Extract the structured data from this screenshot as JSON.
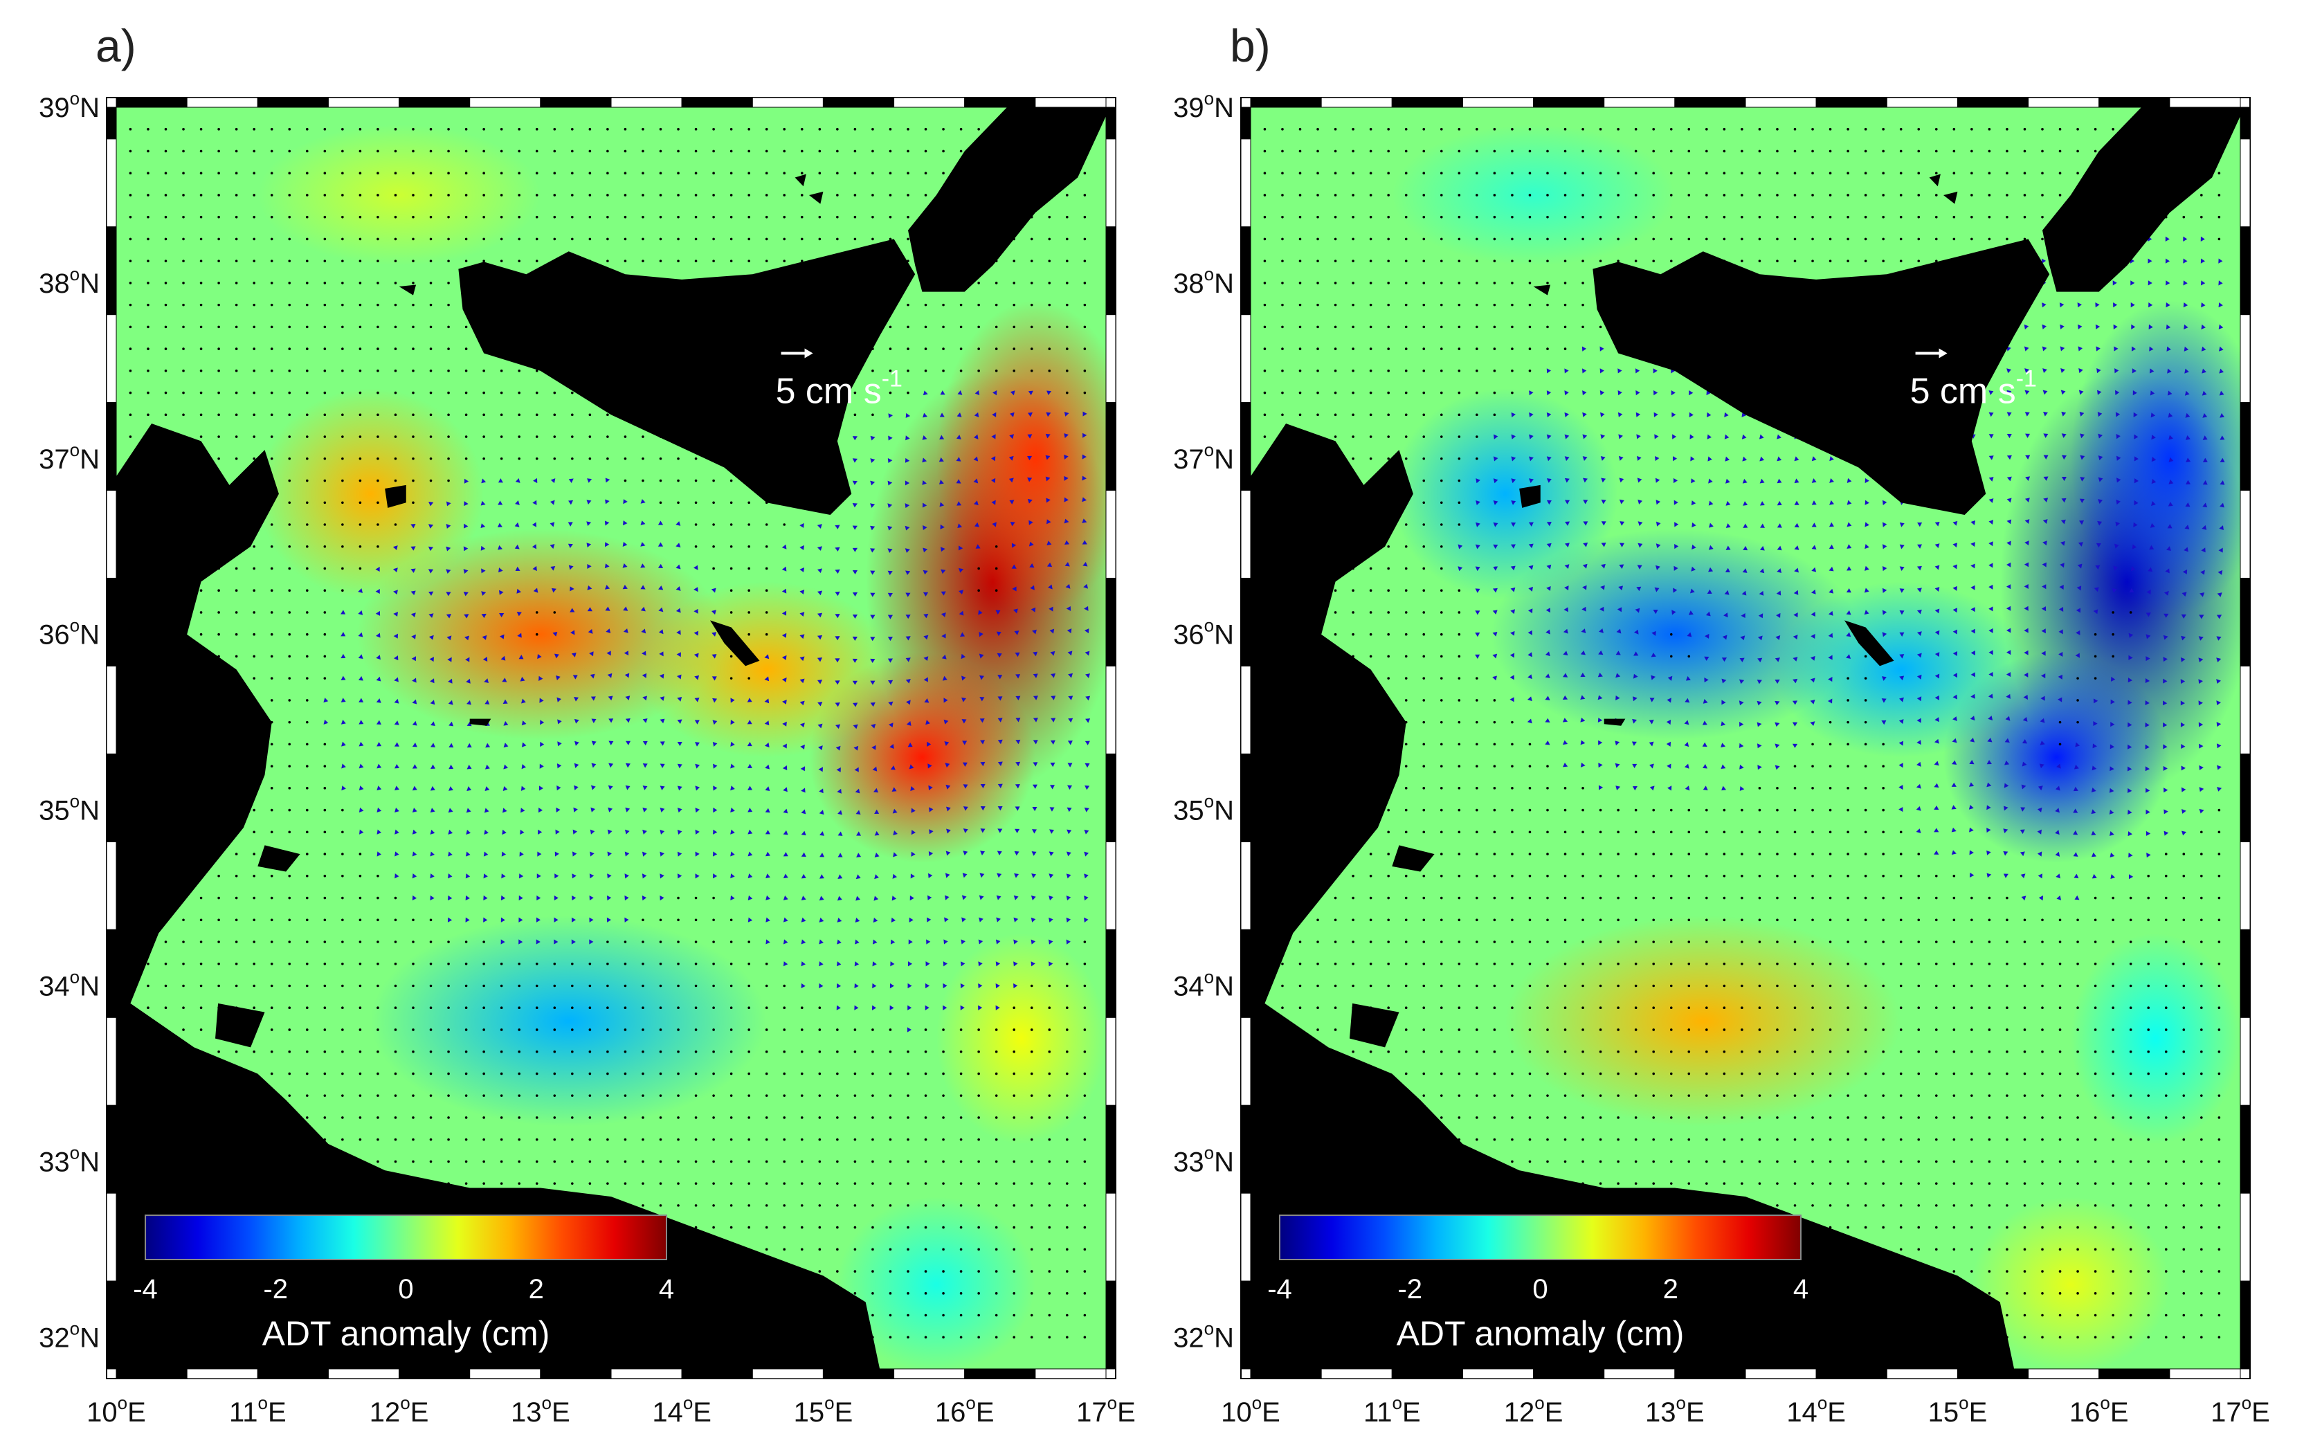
{
  "panels": [
    {
      "id": "a",
      "label": "a)",
      "scale_label": "5 cm s",
      "scale_exp": "-1",
      "anomaly_sign": 1
    },
    {
      "id": "b",
      "label": "b)",
      "scale_label": "5 cm s",
      "scale_exp": "-1",
      "anomaly_sign": -1
    }
  ],
  "lat_ticks": [
    {
      "deg": "32",
      "value": 32
    },
    {
      "deg": "33",
      "value": 33
    },
    {
      "deg": "34",
      "value": 34
    },
    {
      "deg": "35",
      "value": 35
    },
    {
      "deg": "36",
      "value": 36
    },
    {
      "deg": "37",
      "value": 37
    },
    {
      "deg": "38",
      "value": 38
    },
    {
      "deg": "39",
      "value": 39
    }
  ],
  "lon_ticks": [
    {
      "deg": "10",
      "value": 10
    },
    {
      "deg": "11",
      "value": 11
    },
    {
      "deg": "12",
      "value": 12
    },
    {
      "deg": "13",
      "value": 13
    },
    {
      "deg": "14",
      "value": 14
    },
    {
      "deg": "15",
      "value": 15
    },
    {
      "deg": "16",
      "value": 16
    },
    {
      "deg": "17",
      "value": 17
    }
  ],
  "lat_suffix": "N",
  "lon_suffix": "E",
  "degree_mark": "o",
  "colorbar": {
    "title": "ADT anomaly (cm)",
    "ticks": [
      "-4",
      "-2",
      "0",
      "2",
      "4"
    ],
    "min": -4,
    "max": 4
  },
  "colors": {
    "land": "#000000",
    "arrows": "#1a10c8",
    "frame": "#000000"
  }
}
